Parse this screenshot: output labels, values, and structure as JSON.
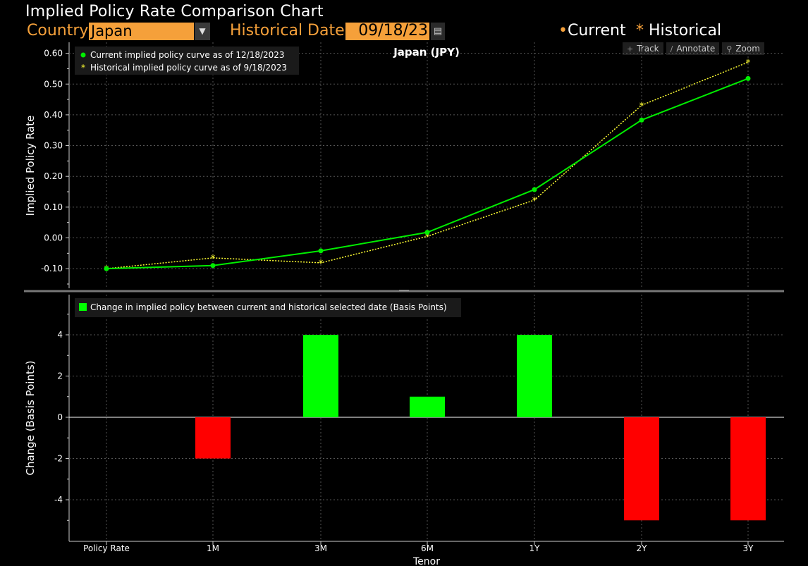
{
  "header": {
    "title": "Implied Policy Rate Comparison Chart",
    "country_label": "Country",
    "country_value": "Japan",
    "historical_date_label": "Historical Date",
    "historical_date_value": "09/18/23",
    "legend_current": "Current",
    "legend_historical": "Historical",
    "legend_current_symbol": "•",
    "legend_historical_symbol": "*"
  },
  "toolbar": {
    "track": "Track",
    "annotate": "Annotate",
    "zoom": "Zoom"
  },
  "colors": {
    "current": "#00ee00",
    "historical": "#ffff33",
    "positive_bar": "#00ff00",
    "negative_bar": "#ff0000",
    "accent": "#f5a03a"
  },
  "chart_data": [
    {
      "type": "line",
      "title": "Japan (JPY)",
      "xlabel": "",
      "ylabel": "Implied Policy Rate",
      "categories": [
        "Policy Rate",
        "1M",
        "3M",
        "6M",
        "1Y",
        "2Y",
        "3Y"
      ],
      "ylim": [
        -0.17,
        0.63
      ],
      "yticks": [
        -0.1,
        0.0,
        0.1,
        0.2,
        0.3,
        0.4,
        0.5,
        0.6
      ],
      "ytick_labels": [
        "-0.10",
        "0.00",
        "0.10",
        "0.20",
        "0.30",
        "0.40",
        "0.50",
        "0.60"
      ],
      "grid": true,
      "legend_position": "top-left",
      "series": [
        {
          "name": "Current implied policy curve as of 12/18/2023",
          "values": [
            -0.1,
            -0.09,
            -0.042,
            0.018,
            0.157,
            0.383,
            0.518
          ]
        },
        {
          "name": "Historical implied policy curve as of 9/18/2023",
          "values": [
            -0.1,
            -0.065,
            -0.081,
            0.005,
            0.123,
            0.431,
            0.571
          ]
        }
      ]
    },
    {
      "type": "bar",
      "title": "",
      "xlabel": "Tenor",
      "ylabel": "Change (Basis Points)",
      "categories": [
        "Policy Rate",
        "1M",
        "3M",
        "6M",
        "1Y",
        "2Y",
        "3Y"
      ],
      "ylim": [
        -6,
        6
      ],
      "yticks": [
        -4,
        -2,
        0,
        2,
        4
      ],
      "grid": true,
      "legend_position": "top-left",
      "series": [
        {
          "name": "Change in implied policy between current and historical selected date (Basis Points)",
          "values": [
            0,
            -2,
            4,
            1,
            4,
            -5,
            -5
          ]
        }
      ]
    }
  ]
}
